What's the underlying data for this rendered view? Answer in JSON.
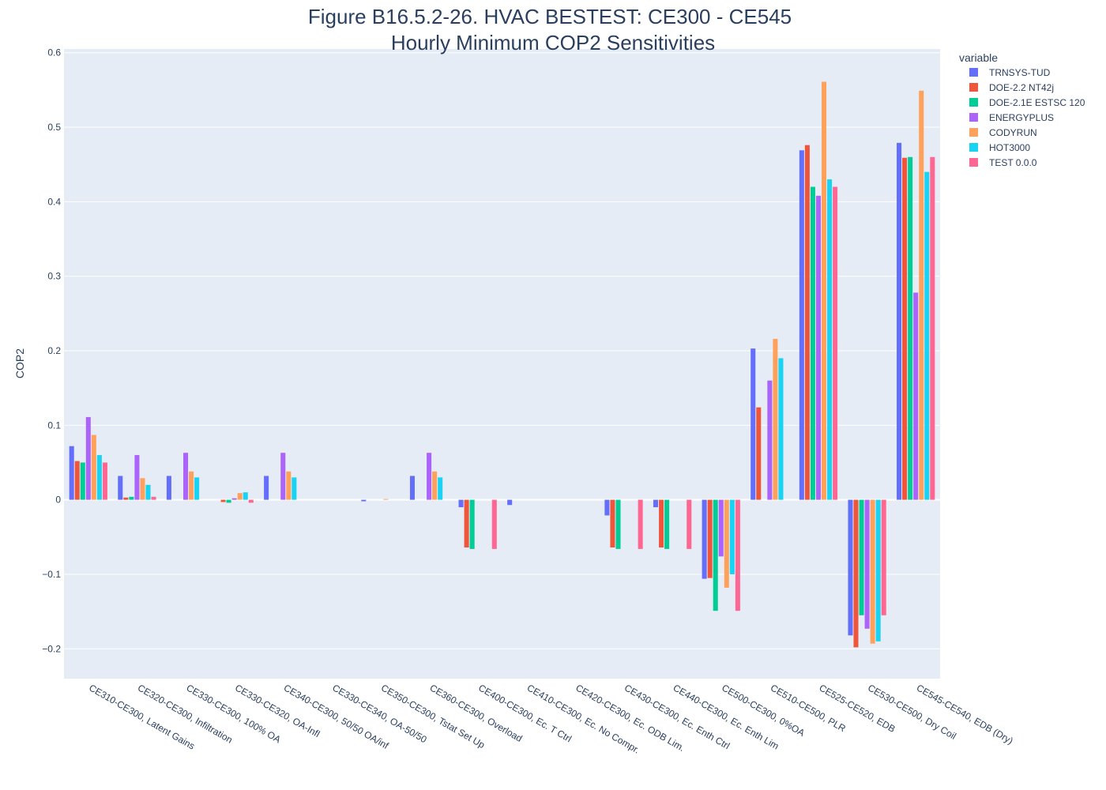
{
  "chart_data": {
    "type": "bar",
    "title": "Figure B16.5.2-26. HVAC BESTEST: CE300 - CE545",
    "subtitle": "Hourly Minimum COP2 Sensitivities",
    "xlabel": "",
    "ylabel": "COP2",
    "ylim": [
      -0.24,
      0.605
    ],
    "yticks": [
      -0.2,
      -0.1,
      0,
      0.1,
      0.2,
      0.3,
      0.4,
      0.5,
      0.6
    ],
    "ytick_labels": [
      "−0.2",
      "−0.1",
      "0",
      "0.1",
      "0.2",
      "0.3",
      "0.4",
      "0.5",
      "0.6"
    ],
    "grid": true,
    "legend_title": "variable",
    "legend_position": "right",
    "categories": [
      "CE310-CE300, Latent Gains",
      "CE320-CE300, Infiltration",
      "CE330-CE300, 100% OA",
      "CE330-CE320, OA-Infl",
      "CE340-CE300, 50/50 OA/inf",
      "CE330-CE340, OA-50/50",
      "CE350-CE300, Tstat Set Up",
      "CE360-CE300, Overload",
      "CE400-CE300, Ec. T Ctrl",
      "CE410-CE300, Ec. No Compr.",
      "CE420-CE300, Ec. ODB Lim.",
      "CE430-CE300, Ec. Enth Ctrl",
      "CE440-CE300, Ec. Enth Lim",
      "CE500-CE300, 0%OA",
      "CE510-CE500, PLR",
      "CE525-CE520, EDB",
      "CE530-CE500, Dry Coil",
      "CE545-CE540, EDB (Dry)"
    ],
    "series": [
      {
        "name": "TRNSYS-TUD",
        "color": "#636efa",
        "values": [
          0.072,
          0.032,
          0.032,
          0.0,
          0.032,
          0.0,
          -0.002,
          0.032,
          -0.01,
          -0.007,
          0.0,
          -0.021,
          -0.01,
          -0.106,
          0.203,
          0.469,
          -0.182,
          0.479
        ]
      },
      {
        "name": "DOE-2.2 NT42j",
        "color": "#ef553b",
        "values": [
          0.052,
          0.003,
          0.0,
          -0.003,
          0.0,
          0.0,
          0.0,
          0.0,
          -0.064,
          0.0,
          0.0,
          -0.064,
          -0.064,
          -0.105,
          0.124,
          0.476,
          -0.198,
          0.459
        ]
      },
      {
        "name": "DOE-2.1E ESTSC 120",
        "color": "#00cc96",
        "values": [
          0.05,
          0.004,
          0.0,
          -0.004,
          0.0,
          0.0,
          0.0,
          0.0,
          -0.066,
          0.0,
          0.0,
          -0.066,
          -0.066,
          -0.149,
          0.0,
          0.42,
          -0.155,
          0.46
        ]
      },
      {
        "name": "ENERGYPLUS",
        "color": "#ab63fa",
        "values": [
          0.111,
          0.06,
          0.063,
          0.002,
          0.063,
          0.0,
          0.0,
          0.063,
          0.0,
          0.0,
          0.0,
          0.0,
          0.0,
          -0.076,
          0.16,
          0.408,
          -0.173,
          0.278
        ]
      },
      {
        "name": "CODYRUN",
        "color": "#ffa15a",
        "values": [
          0.087,
          0.029,
          0.038,
          0.009,
          0.038,
          0.0,
          0.001,
          0.038,
          0.0,
          0.0,
          0.0,
          0.0,
          0.0,
          -0.118,
          0.216,
          0.561,
          -0.193,
          0.549
        ]
      },
      {
        "name": "HOT3000",
        "color": "#19d3f3",
        "values": [
          0.06,
          0.02,
          0.03,
          0.01,
          0.03,
          0.0,
          0.0,
          0.03,
          0.0,
          0.0,
          0.0,
          0.0,
          0.0,
          -0.1,
          0.19,
          0.43,
          -0.19,
          0.44
        ]
      },
      {
        "name": "TEST 0.0.0",
        "color": "#ff6692",
        "values": [
          0.05,
          0.004,
          0.0,
          -0.004,
          0.0,
          0.0,
          0.0,
          0.0,
          -0.066,
          0.0,
          0.0,
          -0.066,
          -0.066,
          -0.149,
          0.0,
          0.42,
          -0.155,
          0.46
        ]
      }
    ]
  }
}
